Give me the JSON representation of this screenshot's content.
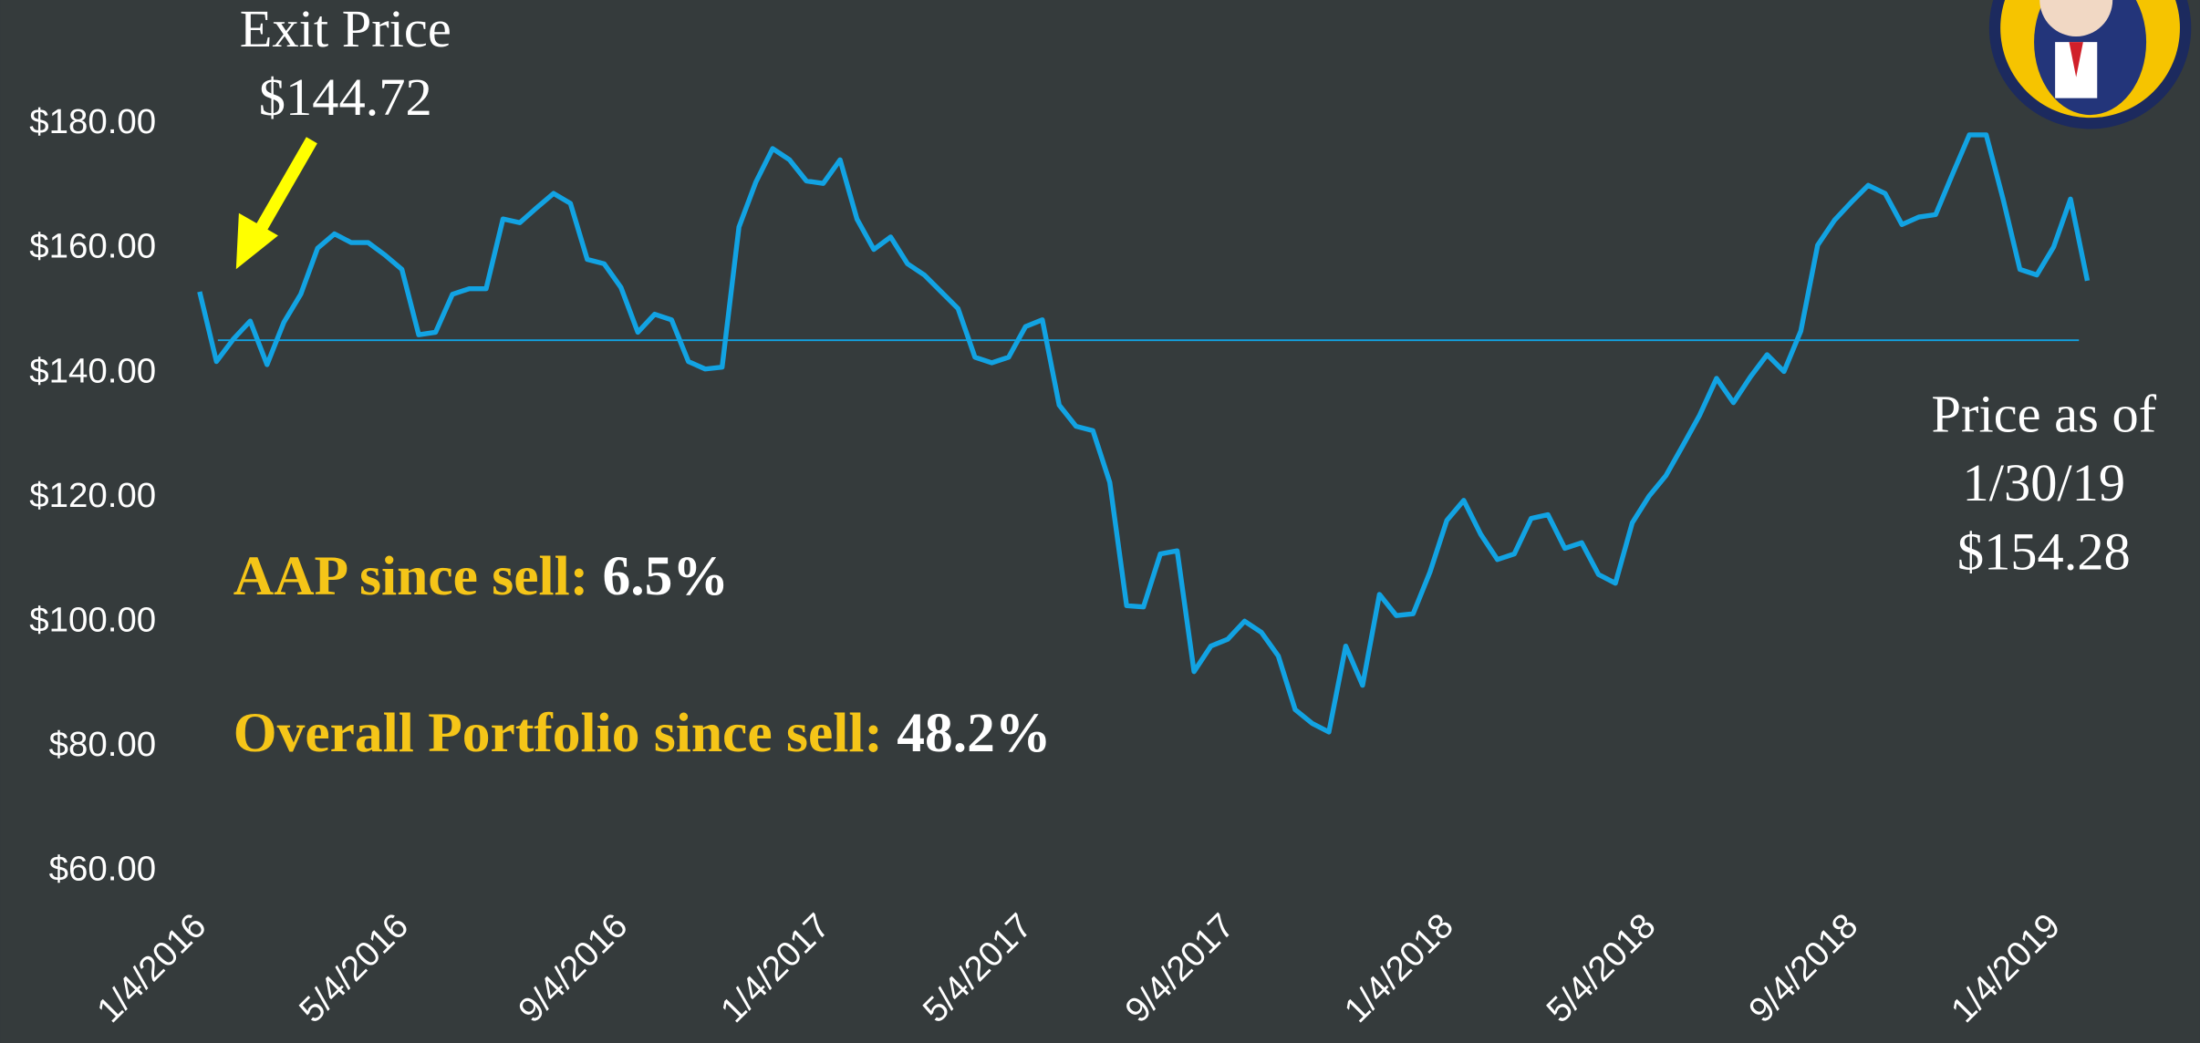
{
  "chart_data": {
    "type": "line",
    "categories": [
      "1/4/2016",
      null,
      null,
      null,
      null,
      null,
      null,
      null,
      null,
      null,
      null,
      null,
      "5/4/2016",
      null,
      null,
      null,
      null,
      null,
      null,
      null,
      null,
      null,
      null,
      null,
      null,
      "9/4/2016",
      null,
      null,
      null,
      null,
      null,
      null,
      null,
      null,
      null,
      null,
      null,
      "1/4/2017",
      null,
      null,
      null,
      null,
      null,
      null,
      null,
      null,
      null,
      null,
      null,
      "5/4/2017",
      null,
      null,
      null,
      null,
      null,
      null,
      null,
      null,
      null,
      null,
      null,
      "9/4/2017",
      null,
      null,
      null,
      null,
      null,
      null,
      null,
      null,
      null,
      null,
      null,
      null,
      "1/4/2018",
      null,
      null,
      null,
      null,
      null,
      null,
      null,
      null,
      null,
      null,
      null,
      "5/4/2018",
      null,
      null,
      null,
      null,
      null,
      null,
      null,
      null,
      null,
      null,
      null,
      "9/4/2018",
      null,
      null,
      null,
      null,
      null,
      null,
      null,
      null,
      null,
      null,
      null,
      "1/4/2019",
      null,
      null
    ],
    "series": [
      {
        "name": "AAP",
        "color": "#12a3e3",
        "values": [
          152.5,
          141.3,
          144.9,
          147.8,
          140.8,
          147.6,
          152.1,
          159.5,
          161.8,
          160.4,
          160.4,
          158.4,
          156.1,
          145.6,
          146.0,
          152.1,
          153.0,
          153.0,
          164.2,
          163.6,
          166.0,
          168.3,
          166.7,
          157.7,
          157.0,
          153.2,
          146.0,
          148.9,
          148.0,
          141.3,
          140.1,
          140.4,
          162.9,
          170.1,
          175.5,
          173.7,
          170.3,
          169.9,
          173.7,
          164.2,
          159.3,
          161.3,
          157.0,
          155.2,
          152.5,
          149.8,
          142.0,
          141.1,
          142.0,
          146.9,
          148.0,
          134.3,
          130.9,
          130.2,
          121.9,
          102.1,
          101.9,
          110.4,
          110.9,
          91.5,
          95.6,
          96.7,
          99.6,
          97.8,
          94.0,
          85.4,
          83.2,
          81.8,
          95.6,
          89.3,
          103.9,
          100.5,
          100.8,
          107.5,
          115.8,
          119.0,
          113.6,
          109.5,
          110.4,
          116.1,
          116.7,
          111.3,
          112.2,
          107.1,
          105.7,
          115.4,
          119.7,
          123.0,
          127.8,
          132.7,
          138.6,
          134.7,
          138.8,
          142.4,
          139.7,
          146.2,
          160.0,
          164.0,
          166.9,
          169.6,
          168.3,
          163.3,
          164.5,
          164.9,
          171.4,
          177.7,
          177.7,
          167.4,
          156.1,
          155.2,
          159.7,
          167.4,
          154.28
        ]
      }
    ],
    "ylim": [
      60,
      180
    ],
    "yticks": [
      {
        "value": 60,
        "label": "$60.00"
      },
      {
        "value": 80,
        "label": "$80.00"
      },
      {
        "value": 100,
        "label": "$100.00"
      },
      {
        "value": 120,
        "label": "$120.00"
      },
      {
        "value": 140,
        "label": "$140.00"
      },
      {
        "value": 160,
        "label": "$160.00"
      },
      {
        "value": 180,
        "label": "$180.00"
      }
    ],
    "exit_price": 144.72,
    "annotations": {
      "exit_label": "Exit Price",
      "exit_value": "$144.72",
      "current_label": "Price as of",
      "current_date": "1/30/19",
      "current_value": "$154.28"
    },
    "stats": {
      "aap_label": "AAP since sell:",
      "aap_value": "6.5%",
      "portfolio_label": "Overall Portfolio since sell:",
      "portfolio_value": "48.2%"
    }
  }
}
